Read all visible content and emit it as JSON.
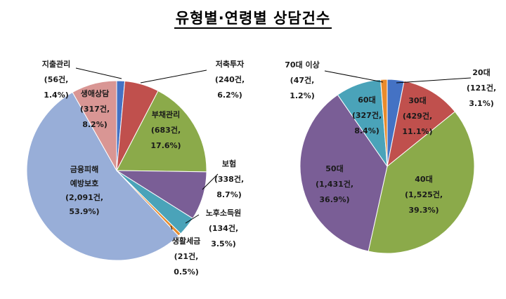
{
  "title": "유형별·연령별  상담건수",
  "colors": {
    "blue": "#4472C4",
    "red": "#C0504D",
    "green": "#8BAA4A",
    "purple": "#7A5E96",
    "teal": "#4AA3B9",
    "orange": "#E98B2C",
    "lightblue": "#98AED8",
    "pink": "#D99694"
  },
  "chart_data": [
    {
      "type": "pie",
      "slices": [
        {
          "name": "지출관리",
          "count": "56건,",
          "percent": "1.4%)",
          "value": 56,
          "color": "blue"
        },
        {
          "name": "저축투자",
          "count": "240건,",
          "percent": "6.2%)",
          "value": 240,
          "color": "red"
        },
        {
          "name": "부채관리",
          "count": "683건,",
          "percent": "17.6%)",
          "value": 683,
          "color": "green"
        },
        {
          "name": "보험",
          "count": "338건,",
          "percent": "8.7%)",
          "value": 338,
          "color": "purple"
        },
        {
          "name": "노후소득원",
          "count": "134건,",
          "percent": "3.5%)",
          "value": 134,
          "color": "teal"
        },
        {
          "name": "생활세금",
          "count": "21건,",
          "percent": "0.5%)",
          "value": 21,
          "color": "orange"
        },
        {
          "name": "금융피해 예방보호",
          "count": "2,091건,",
          "percent": "53.9%)",
          "value": 2091,
          "color": "lightblue"
        },
        {
          "name": "생애상담",
          "count": "317건,",
          "percent": "8.2%)",
          "value": 317,
          "color": "pink"
        }
      ]
    },
    {
      "type": "pie",
      "slices": [
        {
          "name": "20대",
          "count": "121건,",
          "percent": "3.1%)",
          "value": 121,
          "color": "blue"
        },
        {
          "name": "30대",
          "count": "429건,",
          "percent": "11.1%)",
          "value": 429,
          "color": "red"
        },
        {
          "name": "40대",
          "count": "1,525건,",
          "percent": "39.3%)",
          "value": 1525,
          "color": "green"
        },
        {
          "name": "50대",
          "count": "1,431건,",
          "percent": "36.9%)",
          "value": 1431,
          "color": "purple"
        },
        {
          "name": "60대",
          "count": "327건,",
          "percent": "8.4%)",
          "value": 327,
          "color": "teal"
        },
        {
          "name": "70대 이상",
          "count": "47건,",
          "percent": "1.2%)",
          "value": 47,
          "color": "orange"
        }
      ]
    }
  ]
}
